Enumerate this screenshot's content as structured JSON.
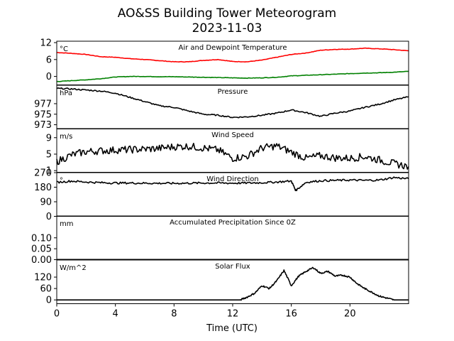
{
  "header": {
    "title": "AO&SS Building Tower Meteorogram",
    "subtitle": "2023-11-03"
  },
  "x_axis": {
    "label": "Time (UTC)",
    "ticks": [
      "0",
      "4",
      "8",
      "12",
      "16",
      "20"
    ]
  },
  "chart_data": [
    {
      "type": "line",
      "title": "Air and Dewpoint Temperature",
      "ylabel": "°C",
      "ylim": [
        -3,
        12.5
      ],
      "yticks": [
        {
          "v": 12,
          "label": "12"
        },
        {
          "v": 6,
          "label": "6"
        },
        {
          "v": 0,
          "label": "0"
        }
      ],
      "x": [
        0,
        1,
        2,
        3,
        4,
        5,
        6,
        7,
        8,
        9,
        10,
        11,
        12,
        13,
        14,
        15,
        16,
        17,
        18,
        19,
        20,
        21,
        22,
        23,
        24
      ],
      "series": [
        {
          "color": "#ff0000",
          "values": [
            8.5,
            8.2,
            7.8,
            7.0,
            6.8,
            6.3,
            6.0,
            5.6,
            5.2,
            5.2,
            5.7,
            6.0,
            5.3,
            5.2,
            5.8,
            6.8,
            7.8,
            8.3,
            9.3,
            9.6,
            9.7,
            10.0,
            9.8,
            9.5,
            9.1
          ]
        },
        {
          "color": "#008000",
          "values": [
            -1.8,
            -1.5,
            -1.2,
            -0.8,
            -0.2,
            0.0,
            0.0,
            -0.1,
            -0.1,
            -0.2,
            -0.3,
            -0.4,
            -0.5,
            -0.6,
            -0.5,
            -0.3,
            0.2,
            0.4,
            0.6,
            0.8,
            1.0,
            1.2,
            1.3,
            1.5,
            1.8
          ]
        }
      ]
    },
    {
      "type": "line",
      "title": "Pressure",
      "ylabel": "hPa",
      "ylim": [
        972.2,
        980.5
      ],
      "yticks": [
        {
          "v": 977,
          "label": "977"
        },
        {
          "v": 975,
          "label": "975"
        },
        {
          "v": 973,
          "label": "973"
        }
      ],
      "x": [
        0,
        1,
        2,
        3,
        4,
        5,
        6,
        7,
        8,
        9,
        10,
        11,
        12,
        13,
        14,
        15,
        16,
        17,
        18,
        19,
        20,
        21,
        22,
        23,
        24
      ],
      "series": [
        {
          "color": "#000000",
          "values": [
            979.9,
            979.8,
            979.6,
            979.4,
            979.0,
            978.2,
            977.4,
            976.6,
            976.3,
            975.6,
            975.0,
            974.8,
            974.4,
            974.5,
            974.8,
            975.2,
            975.8,
            975.3,
            974.6,
            975.2,
            975.6,
            976.3,
            976.9,
            977.7,
            978.3
          ]
        }
      ]
    },
    {
      "type": "line",
      "title": "Wind Speed",
      "ylabel": "m/s",
      "ylim": [
        0.6,
        11.2
      ],
      "yticks": [
        {
          "v": 9,
          "label": "9"
        },
        {
          "v": 5,
          "label": "5"
        },
        {
          "v": 1,
          "label": "1"
        }
      ],
      "x": [
        0,
        1,
        2,
        3,
        4,
        5,
        6,
        7,
        8,
        9,
        10,
        11,
        12,
        13,
        14,
        15,
        16,
        17,
        18,
        19,
        20,
        21,
        22,
        23,
        24
      ],
      "series": [
        {
          "color": "#000000",
          "values": [
            3.2,
            4.8,
            5.6,
            5.8,
            6.0,
            6.1,
            6.2,
            6.4,
            6.8,
            6.9,
            6.5,
            6.0,
            4.0,
            4.5,
            6.5,
            7.0,
            5.5,
            4.0,
            4.6,
            4.1,
            4.0,
            4.4,
            3.6,
            2.7,
            2.0
          ]
        }
      ]
    },
    {
      "type": "line",
      "title": "Wind Direction",
      "ylabel": "°",
      "ylim": [
        0,
        270
      ],
      "yticks": [
        {
          "v": 270,
          "label": "270"
        },
        {
          "v": 180,
          "label": "180"
        },
        {
          "v": 90,
          "label": "90"
        },
        {
          "v": 0,
          "label": "0"
        }
      ],
      "x": [
        0,
        1,
        2,
        3,
        4,
        5,
        6,
        7,
        8,
        9,
        10,
        11,
        12,
        13,
        14,
        15,
        16,
        16.3,
        17,
        18,
        19,
        20,
        21,
        22,
        23,
        24
      ],
      "series": [
        {
          "color": "#000000",
          "values": [
            210,
            218,
            212,
            208,
            206,
            206,
            205,
            204,
            204,
            205,
            206,
            206,
            205,
            206,
            208,
            212,
            218,
            160,
            210,
            220,
            222,
            224,
            222,
            224,
            240,
            232
          ]
        }
      ]
    },
    {
      "type": "line",
      "title": "Accumulated Precipitation Since 0Z",
      "ylabel": "mm",
      "ylim": [
        0,
        0.2
      ],
      "yticks": [
        {
          "v": 0.1,
          "label": "0.10"
        },
        {
          "v": 0.05,
          "label": "0.05"
        },
        {
          "v": 0,
          "label": "0.00"
        }
      ],
      "x": [
        0,
        24
      ],
      "series": [
        {
          "color": "#000000",
          "values": [
            0,
            0
          ]
        }
      ]
    },
    {
      "type": "line",
      "title": "Solar Flux",
      "ylabel": "W/m^2",
      "ylim": [
        -20,
        210
      ],
      "yticks": [
        {
          "v": 120,
          "label": "120"
        },
        {
          "v": 60,
          "label": "60"
        },
        {
          "v": 0,
          "label": "0"
        }
      ],
      "x": [
        0,
        2,
        4,
        6,
        8,
        10,
        12,
        12.5,
        13,
        13.5,
        14,
        14.5,
        15,
        15.5,
        16,
        16.5,
        17,
        17.5,
        18,
        18.5,
        19,
        19.5,
        20,
        20.5,
        21,
        21.5,
        22,
        22.5,
        23,
        24
      ],
      "series": [
        {
          "color": "#000000",
          "values": [
            0,
            0,
            0,
            0,
            0,
            0,
            0,
            0,
            15,
            35,
            75,
            60,
            100,
            155,
            75,
            125,
            150,
            170,
            140,
            150,
            125,
            130,
            120,
            85,
            60,
            40,
            20,
            10,
            0,
            0
          ]
        }
      ]
    }
  ]
}
